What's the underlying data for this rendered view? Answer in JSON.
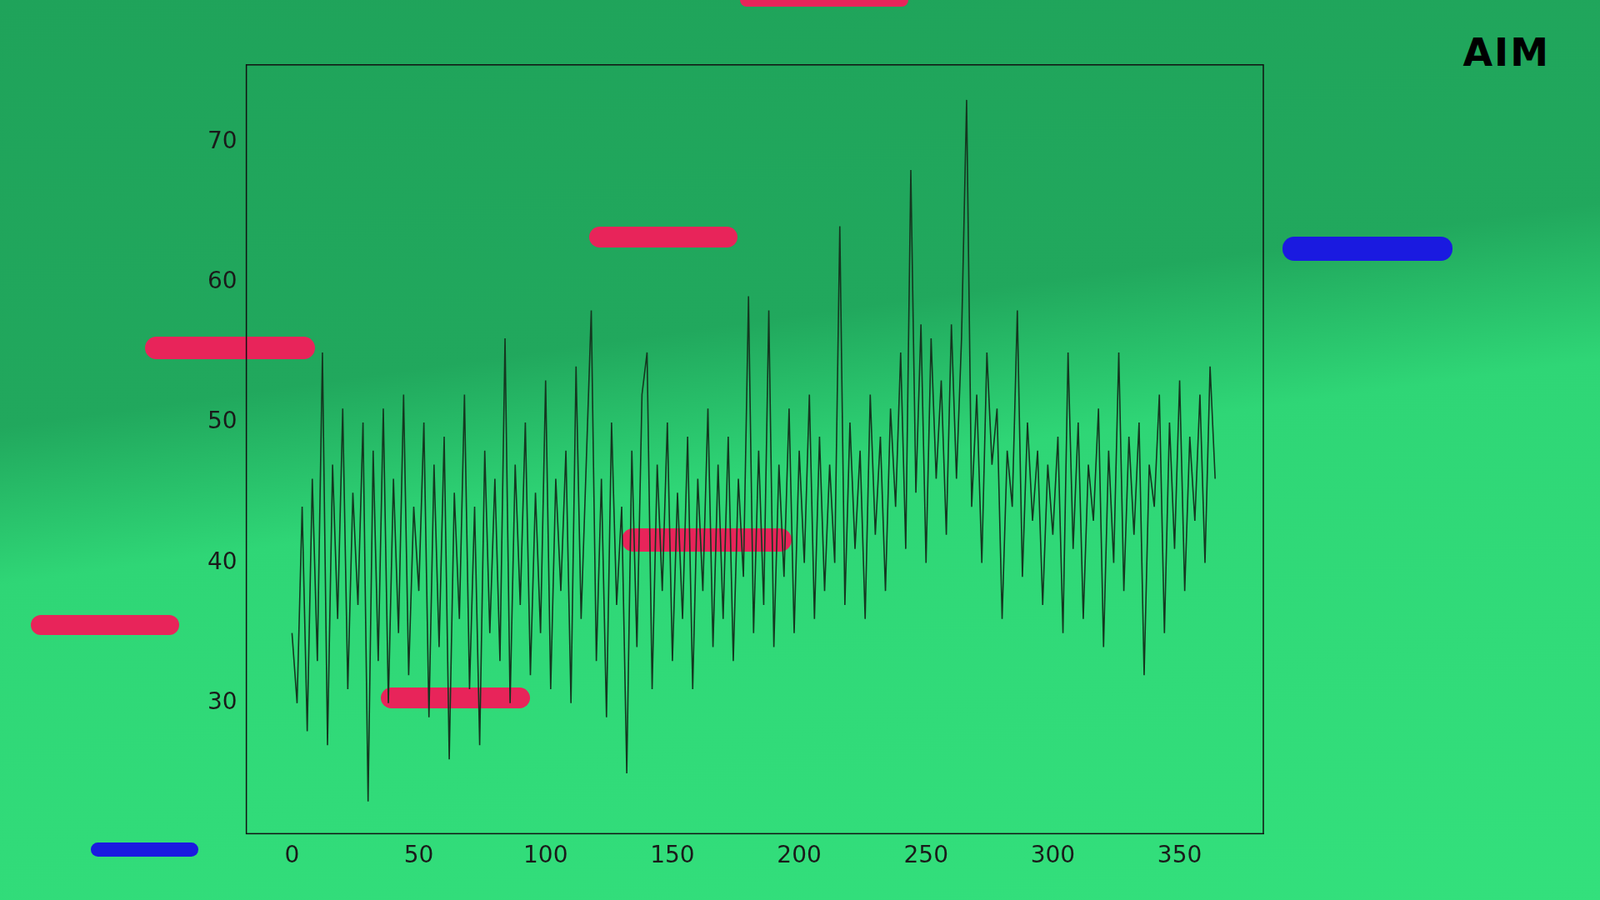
{
  "chart_data": {
    "type": "line",
    "logo": "AIM",
    "color": "#14361f",
    "grid": false,
    "line_style": "solid",
    "xlim": [
      -18,
      383
    ],
    "xticks": [
      0,
      50,
      100,
      150,
      200,
      250,
      300,
      350
    ],
    "ylim": [
      20.7,
      75.5
    ],
    "yticks": [
      30,
      40,
      50,
      60,
      70
    ],
    "x": [
      0,
      2,
      4,
      6,
      8,
      10,
      12,
      14,
      16,
      18,
      20,
      22,
      24,
      26,
      28,
      30,
      32,
      34,
      36,
      38,
      40,
      42,
      44,
      46,
      48,
      50,
      52,
      54,
      56,
      58,
      60,
      62,
      64,
      66,
      68,
      70,
      72,
      74,
      76,
      78,
      80,
      82,
      84,
      86,
      88,
      90,
      92,
      94,
      96,
      98,
      100,
      102,
      104,
      106,
      108,
      110,
      112,
      114,
      116,
      118,
      120,
      122,
      124,
      126,
      128,
      130,
      132,
      134,
      136,
      138,
      140,
      142,
      144,
      146,
      148,
      150,
      152,
      154,
      156,
      158,
      160,
      162,
      164,
      166,
      168,
      170,
      172,
      174,
      176,
      178,
      180,
      182,
      184,
      186,
      188,
      190,
      192,
      194,
      196,
      198,
      200,
      202,
      204,
      206,
      208,
      210,
      212,
      214,
      216,
      218,
      220,
      222,
      224,
      226,
      228,
      230,
      232,
      234,
      236,
      238,
      240,
      242,
      244,
      246,
      248,
      250,
      252,
      254,
      256,
      258,
      260,
      262,
      264,
      266,
      268,
      270,
      272,
      274,
      276,
      278,
      280,
      282,
      284,
      286,
      288,
      290,
      292,
      294,
      296,
      298,
      300,
      302,
      304,
      306,
      308,
      310,
      312,
      314,
      316,
      318,
      320,
      322,
      324,
      326,
      328,
      330,
      332,
      334,
      336,
      338,
      340,
      342,
      344,
      346,
      348,
      350,
      352,
      354,
      356,
      358,
      360,
      362,
      364
    ],
    "values": [
      35,
      30,
      44,
      28,
      46,
      33,
      55,
      27,
      47,
      36,
      51,
      31,
      45,
      37,
      50,
      23,
      48,
      33,
      51,
      30,
      46,
      35,
      52,
      32,
      44,
      38,
      50,
      29,
      47,
      34,
      49,
      26,
      45,
      36,
      52,
      31,
      44,
      27,
      48,
      35,
      46,
      33,
      56,
      30,
      47,
      37,
      50,
      32,
      45,
      35,
      53,
      31,
      46,
      38,
      48,
      30,
      54,
      36,
      47,
      58,
      33,
      46,
      29,
      50,
      37,
      44,
      25,
      48,
      34,
      52,
      55,
      31,
      47,
      38,
      50,
      33,
      45,
      36,
      49,
      31,
      46,
      38,
      51,
      34,
      47,
      36,
      49,
      33,
      46,
      39,
      59,
      35,
      48,
      37,
      58,
      34,
      47,
      39,
      51,
      35,
      48,
      40,
      52,
      36,
      49,
      38,
      47,
      40,
      64,
      37,
      50,
      41,
      48,
      36,
      52,
      42,
      49,
      38,
      51,
      44,
      55,
      41,
      68,
      45,
      57,
      40,
      56,
      46,
      53,
      42,
      57,
      46,
      56,
      73,
      44,
      52,
      40,
      55,
      47,
      51,
      36,
      48,
      44,
      58,
      39,
      50,
      43,
      48,
      37,
      47,
      42,
      49,
      35,
      55,
      41,
      50,
      36,
      47,
      43,
      51,
      34,
      48,
      40,
      55,
      38,
      49,
      42,
      50,
      32,
      47,
      44,
      52,
      35,
      50,
      41,
      53,
      38,
      49,
      43,
      52,
      40,
      54,
      46
    ]
  }
}
